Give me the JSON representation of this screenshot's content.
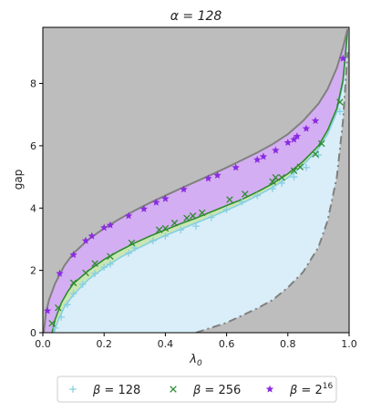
{
  "chart_data": {
    "type": "scatter",
    "title": "α = 128",
    "xlabel": "λ",
    "xlabel_sub": "0",
    "ylabel": "gap",
    "xlim": [
      0.0,
      1.0
    ],
    "ylim": [
      0.0,
      9.8
    ],
    "xticks": [
      0.0,
      0.2,
      0.4,
      0.6,
      0.8,
      1.0
    ],
    "xtick_labels": [
      "0.0",
      "0.2",
      "0.4",
      "0.6",
      "0.8",
      "1.0"
    ],
    "yticks": [
      0,
      2,
      4,
      6,
      8
    ],
    "ytick_labels": [
      "0",
      "2",
      "4",
      "6",
      "8"
    ],
    "grid": false,
    "legend_position": "below",
    "colors": {
      "background_region": "#bdbdbd",
      "purple_band": "#d4aef2",
      "green_band": "#c9e6b4",
      "blue_band": "#d9eef8",
      "upper_boundary": "#808080",
      "lower_dashdot": "#808080",
      "green_line": "#2e8b2e",
      "blue_line": "#86cfe3"
    },
    "curves": {
      "upper_boundary": [
        [
          0.003,
          0.0
        ],
        [
          0.01,
          0.62
        ],
        [
          0.02,
          1.05
        ],
        [
          0.04,
          1.58
        ],
        [
          0.07,
          2.15
        ],
        [
          0.1,
          2.55
        ],
        [
          0.15,
          3.0
        ],
        [
          0.2,
          3.35
        ],
        [
          0.25,
          3.65
        ],
        [
          0.3,
          3.92
        ],
        [
          0.35,
          4.17
        ],
        [
          0.4,
          4.4
        ],
        [
          0.45,
          4.63
        ],
        [
          0.5,
          4.85
        ],
        [
          0.55,
          5.07
        ],
        [
          0.6,
          5.3
        ],
        [
          0.65,
          5.54
        ],
        [
          0.7,
          5.78
        ],
        [
          0.75,
          6.05
        ],
        [
          0.8,
          6.37
        ],
        [
          0.85,
          6.8
        ],
        [
          0.9,
          7.35
        ],
        [
          0.93,
          7.82
        ],
        [
          0.96,
          8.5
        ],
        [
          0.98,
          9.15
        ],
        [
          0.995,
          9.75
        ]
      ],
      "green_line": [
        [
          0.03,
          0.0
        ],
        [
          0.04,
          0.42
        ],
        [
          0.06,
          0.95
        ],
        [
          0.08,
          1.3
        ],
        [
          0.1,
          1.58
        ],
        [
          0.15,
          2.0
        ],
        [
          0.2,
          2.35
        ],
        [
          0.25,
          2.63
        ],
        [
          0.3,
          2.88
        ],
        [
          0.35,
          3.1
        ],
        [
          0.4,
          3.3
        ],
        [
          0.45,
          3.5
        ],
        [
          0.5,
          3.68
        ],
        [
          0.55,
          3.88
        ],
        [
          0.6,
          4.08
        ],
        [
          0.65,
          4.28
        ],
        [
          0.7,
          4.52
        ],
        [
          0.75,
          4.78
        ],
        [
          0.8,
          5.1
        ],
        [
          0.85,
          5.5
        ],
        [
          0.9,
          6.0
        ],
        [
          0.93,
          6.5
        ],
        [
          0.96,
          7.2
        ],
        [
          0.98,
          8.1
        ],
        [
          0.995,
          9.7
        ]
      ],
      "blue_line": [
        [
          0.035,
          0.0
        ],
        [
          0.05,
          0.4
        ],
        [
          0.07,
          0.82
        ],
        [
          0.1,
          1.22
        ],
        [
          0.15,
          1.72
        ],
        [
          0.2,
          2.08
        ],
        [
          0.25,
          2.4
        ],
        [
          0.3,
          2.66
        ],
        [
          0.35,
          2.9
        ],
        [
          0.4,
          3.12
        ],
        [
          0.45,
          3.32
        ],
        [
          0.5,
          3.52
        ],
        [
          0.55,
          3.72
        ],
        [
          0.6,
          3.93
        ],
        [
          0.65,
          4.15
        ],
        [
          0.7,
          4.4
        ],
        [
          0.75,
          4.66
        ],
        [
          0.8,
          4.97
        ],
        [
          0.85,
          5.38
        ],
        [
          0.9,
          5.9
        ],
        [
          0.93,
          6.38
        ],
        [
          0.96,
          7.08
        ],
        [
          0.98,
          8.0
        ],
        [
          0.995,
          9.6
        ]
      ],
      "lower_dashdot": [
        [
          0.5,
          0.0
        ],
        [
          0.6,
          0.32
        ],
        [
          0.7,
          0.78
        ],
        [
          0.75,
          1.05
        ],
        [
          0.8,
          1.45
        ],
        [
          0.85,
          1.95
        ],
        [
          0.9,
          2.75
        ],
        [
          0.93,
          3.6
        ],
        [
          0.96,
          5.0
        ],
        [
          0.98,
          6.8
        ],
        [
          0.995,
          9.0
        ]
      ]
    },
    "series": [
      {
        "name": "β = 128",
        "label_greek": "β",
        "label_eq": " = 128",
        "label_sup": "",
        "marker": "plus",
        "color": "#86cfe3",
        "points": [
          [
            0.04,
            0.15
          ],
          [
            0.06,
            0.5
          ],
          [
            0.08,
            0.9
          ],
          [
            0.1,
            1.25
          ],
          [
            0.13,
            1.55
          ],
          [
            0.17,
            1.9
          ],
          [
            0.2,
            2.1
          ],
          [
            0.22,
            2.2
          ],
          [
            0.28,
            2.55
          ],
          [
            0.3,
            2.72
          ],
          [
            0.36,
            2.95
          ],
          [
            0.4,
            3.1
          ],
          [
            0.45,
            3.3
          ],
          [
            0.5,
            3.42
          ],
          [
            0.55,
            3.7
          ],
          [
            0.6,
            3.95
          ],
          [
            0.65,
            4.2
          ],
          [
            0.7,
            4.4
          ],
          [
            0.75,
            4.62
          ],
          [
            0.78,
            4.8
          ],
          [
            0.82,
            5.0
          ],
          [
            0.86,
            5.3
          ],
          [
            0.9,
            5.7
          ],
          [
            0.97,
            7.1
          ]
        ]
      },
      {
        "name": "β = 256",
        "label_greek": "β",
        "label_eq": " = 256",
        "label_sup": "",
        "marker": "x",
        "color": "#2e8b2e",
        "points": [
          [
            0.03,
            0.3
          ],
          [
            0.05,
            0.8
          ],
          [
            0.1,
            1.6
          ],
          [
            0.14,
            1.92
          ],
          [
            0.17,
            2.22
          ],
          [
            0.22,
            2.45
          ],
          [
            0.29,
            2.88
          ],
          [
            0.38,
            3.3
          ],
          [
            0.4,
            3.35
          ],
          [
            0.43,
            3.52
          ],
          [
            0.47,
            3.68
          ],
          [
            0.49,
            3.75
          ],
          [
            0.52,
            3.85
          ],
          [
            0.61,
            4.27
          ],
          [
            0.66,
            4.45
          ],
          [
            0.75,
            4.85
          ],
          [
            0.76,
            4.98
          ],
          [
            0.78,
            4.98
          ],
          [
            0.82,
            5.2
          ],
          [
            0.84,
            5.32
          ],
          [
            0.89,
            5.73
          ],
          [
            0.91,
            6.07
          ],
          [
            0.97,
            7.4
          ]
        ]
      },
      {
        "name": "β = 2^16",
        "label_greek": "β",
        "label_eq": " = 2",
        "label_sup": "16",
        "marker": "star",
        "color": "#8a2be2",
        "points": [
          [
            0.015,
            0.7
          ],
          [
            0.055,
            1.9
          ],
          [
            0.1,
            2.5
          ],
          [
            0.14,
            2.95
          ],
          [
            0.16,
            3.1
          ],
          [
            0.2,
            3.37
          ],
          [
            0.22,
            3.45
          ],
          [
            0.28,
            3.75
          ],
          [
            0.33,
            3.97
          ],
          [
            0.37,
            4.18
          ],
          [
            0.4,
            4.3
          ],
          [
            0.46,
            4.6
          ],
          [
            0.54,
            4.95
          ],
          [
            0.57,
            5.05
          ],
          [
            0.63,
            5.3
          ],
          [
            0.7,
            5.55
          ],
          [
            0.72,
            5.65
          ],
          [
            0.76,
            5.85
          ],
          [
            0.8,
            6.1
          ],
          [
            0.82,
            6.2
          ],
          [
            0.83,
            6.3
          ],
          [
            0.86,
            6.55
          ],
          [
            0.89,
            6.8
          ],
          [
            0.98,
            8.8
          ]
        ]
      }
    ]
  }
}
